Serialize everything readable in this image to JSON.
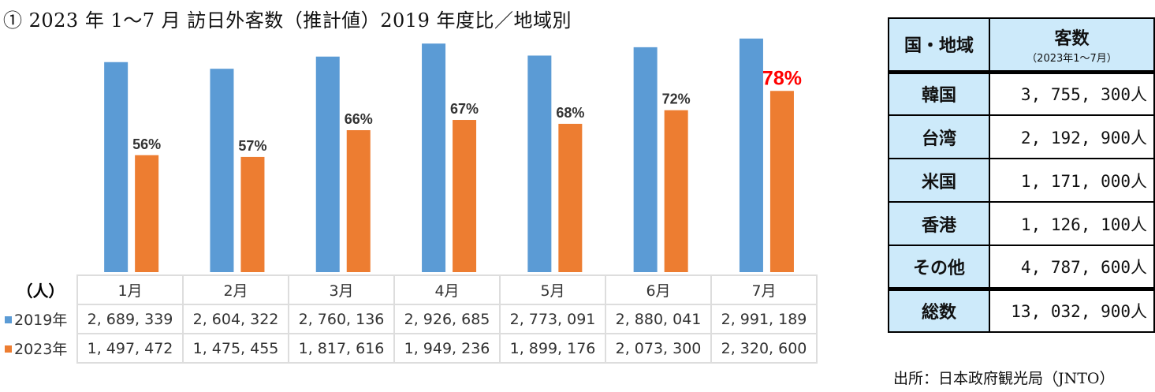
{
  "title": "① 2023 年 1～7 月  訪日外客数（推計値）2019 年度比／地域別",
  "chart_data": {
    "type": "bar",
    "unit_label": "（人）",
    "categories": [
      "1月",
      "2月",
      "3月",
      "4月",
      "5月",
      "6月",
      "7月"
    ],
    "series": [
      {
        "name": "2019年",
        "color": "#5b9bd5",
        "values": [
          2689339,
          2604322,
          2760136,
          2926685,
          2773091,
          2880041,
          2991189
        ],
        "labels": [
          "2, 689, 339",
          "2, 604, 322",
          "2, 760, 136",
          "2, 926, 685",
          "2, 773, 091",
          "2, 880, 041",
          "2, 991, 189"
        ]
      },
      {
        "name": "2023年",
        "color": "#ed7d31",
        "values": [
          1497472,
          1475455,
          1817616,
          1949236,
          1899176,
          2073300,
          2320600
        ],
        "labels": [
          "1, 497, 472",
          "1, 475, 455",
          "1, 817, 616",
          "1, 949, 236",
          "1, 899, 176",
          "2, 073, 300",
          "2, 320, 600"
        ]
      }
    ],
    "ratio_labels": [
      "56%",
      "57%",
      "66%",
      "67%",
      "68%",
      "72%",
      "78%"
    ],
    "highlight_color": "#ff0000",
    "ylim": [
      0,
      3000000
    ]
  },
  "region_table": {
    "header_region": "国・地域",
    "header_count": "客数",
    "header_period": "（2023年1～7月）",
    "rows": [
      {
        "region": "韓国",
        "count": "3, 755, 300人"
      },
      {
        "region": "台湾",
        "count": "2, 192, 900人"
      },
      {
        "region": "米国",
        "count": "1, 171, 000人"
      },
      {
        "region": "香港",
        "count": "1, 126, 100人"
      },
      {
        "region": "その他",
        "count": "4, 787, 600人"
      }
    ],
    "total_label": "総数",
    "total_count": "13, 032, 900人"
  },
  "source": "出所：日本政府観光局（JNTO）"
}
